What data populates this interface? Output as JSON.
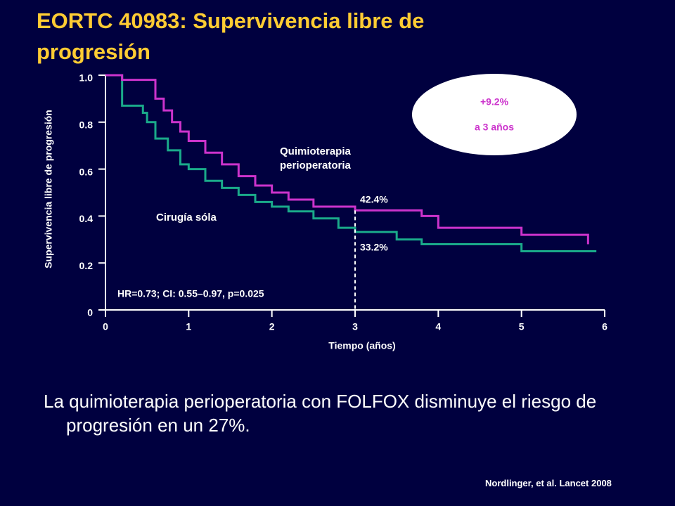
{
  "chart_data": {
    "type": "step",
    "title": "EORTC 40983: Supervivencia libre de progresión",
    "x_label": "Tiempo (años)",
    "y_label": "Supervivencia libre de progresión",
    "xlim": [
      0,
      6
    ],
    "ylim": [
      0,
      1
    ],
    "xticks": [
      0,
      1,
      2,
      3,
      4,
      5,
      6
    ],
    "yticks": [
      0,
      0.2,
      0.4,
      0.6,
      0.8,
      {
        "value": 1,
        "label": "1.0"
      }
    ],
    "series": [
      {
        "name": "Quimioterapia perioperatoria",
        "color": "#cc33cc",
        "x": [
          0,
          0.2,
          0.6,
          0.7,
          0.8,
          0.9,
          1.0,
          1.2,
          1.4,
          1.6,
          1.8,
          2.0,
          2.2,
          2.5,
          3.0,
          3.8,
          4.0,
          5.0,
          5.8
        ],
        "values": [
          1,
          0.98,
          0.9,
          0.85,
          0.8,
          0.76,
          0.72,
          0.67,
          0.62,
          0.57,
          0.53,
          0.5,
          0.47,
          0.44,
          0.424,
          0.4,
          0.35,
          0.32,
          0.28
        ]
      },
      {
        "name": "Cirugía sóla",
        "color": "#1aaa8a",
        "x": [
          0,
          0.2,
          0.45,
          0.5,
          0.6,
          0.75,
          0.9,
          1.0,
          1.2,
          1.4,
          1.6,
          1.8,
          2.0,
          2.2,
          2.5,
          2.8,
          3.0,
          3.5,
          3.8,
          5.0,
          5.9
        ],
        "values": [
          1,
          0.87,
          0.84,
          0.8,
          0.73,
          0.68,
          0.62,
          0.6,
          0.55,
          0.52,
          0.49,
          0.46,
          0.44,
          0.42,
          0.39,
          0.35,
          0.332,
          0.3,
          0.28,
          0.25,
          0.25
        ]
      }
    ],
    "reference_x": 3,
    "reference_y": 0.424,
    "annotations": [
      "42.4%",
      "33.2%",
      "HR=0.73; CI: 0.55–0.97, p=0.025"
    ],
    "callout": [
      "+9.2%",
      "a 3 años"
    ]
  },
  "body_text": "La quimioterapia perioperatoria con FOLFOX disminuye el riesgo de progresión en un 27%.",
  "citation": "Nordlinger, et al. Lancet 2008"
}
